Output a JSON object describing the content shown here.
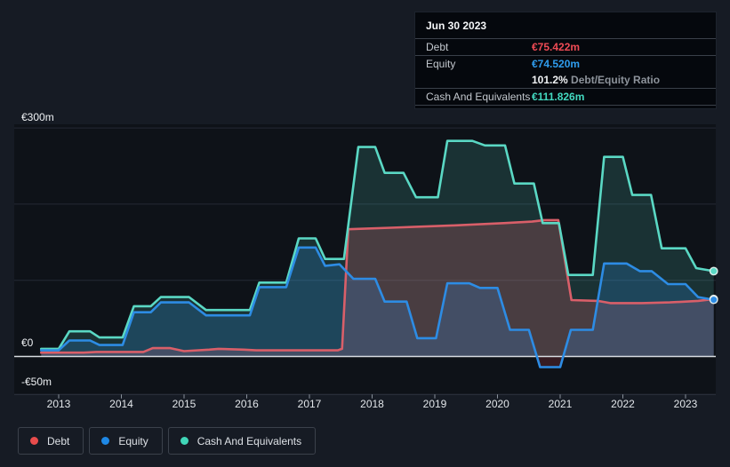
{
  "page": {
    "background": "#161b24",
    "plot_background": "#0e1218"
  },
  "tooltip": {
    "date": "Jun 30 2023",
    "debt_label": "Debt",
    "debt_value": "€75.422m",
    "debt_color": "#ef4b55",
    "equity_label": "Equity",
    "equity_value": "€74.520m",
    "equity_color": "#2f9ced",
    "ratio_value": "101.2%",
    "ratio_label": "Debt/Equity Ratio",
    "cash_label": "Cash And Equivalents",
    "cash_value": "€111.826m",
    "cash_color": "#43d9c0"
  },
  "axis": {
    "y_labels": [
      {
        "text": "€300m",
        "value": 300
      },
      {
        "text": "€0",
        "value": 0
      },
      {
        "text": "-€50m",
        "value": -50
      }
    ],
    "x_labels": [
      "2013",
      "2014",
      "2015",
      "2016",
      "2017",
      "2018",
      "2019",
      "2020",
      "2021",
      "2022",
      "2023"
    ]
  },
  "legend": [
    {
      "label": "Debt",
      "color": "#e84c4c"
    },
    {
      "label": "Equity",
      "color": "#1e88e5"
    },
    {
      "label": "Cash And Equivalents",
      "color": "#40d6b8"
    }
  ],
  "chart_data": {
    "type": "area",
    "unit": "€m",
    "x_range": [
      2012.72,
      2023.45
    ],
    "y_axis": {
      "min": -50,
      "max": 300,
      "gridlines": [
        300,
        200,
        100,
        0,
        -50
      ]
    },
    "grid_color": "#242a35",
    "zero_line_color": "#d9dde2",
    "series": [
      {
        "name": "Debt",
        "color": "#d95f69",
        "fill": "rgba(217,95,105,0.25)",
        "points": [
          [
            2012.72,
            5
          ],
          [
            2013.4,
            5
          ],
          [
            2013.6,
            6
          ],
          [
            2014.35,
            6
          ],
          [
            2014.5,
            11
          ],
          [
            2014.78,
            11
          ],
          [
            2015.0,
            7
          ],
          [
            2015.4,
            9
          ],
          [
            2015.55,
            10
          ],
          [
            2015.95,
            9
          ],
          [
            2016.15,
            8
          ],
          [
            2017.45,
            8
          ],
          [
            2017.52,
            10
          ],
          [
            2017.62,
            167
          ],
          [
            2018.3,
            169
          ],
          [
            2019.3,
            172
          ],
          [
            2020.1,
            175
          ],
          [
            2020.55,
            177
          ],
          [
            2020.75,
            179
          ],
          [
            2020.97,
            179
          ],
          [
            2021.18,
            74
          ],
          [
            2021.6,
            73
          ],
          [
            2021.8,
            70
          ],
          [
            2022.3,
            70
          ],
          [
            2022.75,
            71
          ],
          [
            2023.2,
            73
          ],
          [
            2023.45,
            75.4
          ]
        ]
      },
      {
        "name": "Equity",
        "color": "#2d8ce4",
        "fill": "rgba(45,140,232,0.22)",
        "negative_fill": "rgba(199,62,72,0.22)",
        "points": [
          [
            2012.72,
            8
          ],
          [
            2013.0,
            8
          ],
          [
            2013.17,
            21
          ],
          [
            2013.5,
            21
          ],
          [
            2013.65,
            15
          ],
          [
            2014.02,
            15
          ],
          [
            2014.2,
            58
          ],
          [
            2014.47,
            58
          ],
          [
            2014.63,
            71
          ],
          [
            2015.08,
            71
          ],
          [
            2015.35,
            54
          ],
          [
            2016.05,
            54
          ],
          [
            2016.2,
            91
          ],
          [
            2016.63,
            91
          ],
          [
            2016.83,
            143
          ],
          [
            2017.1,
            143
          ],
          [
            2017.25,
            119
          ],
          [
            2017.48,
            121
          ],
          [
            2017.7,
            102
          ],
          [
            2018.05,
            102
          ],
          [
            2018.2,
            72
          ],
          [
            2018.55,
            72
          ],
          [
            2018.72,
            24
          ],
          [
            2019.02,
            24
          ],
          [
            2019.2,
            96
          ],
          [
            2019.55,
            96
          ],
          [
            2019.72,
            90
          ],
          [
            2020.0,
            90
          ],
          [
            2020.2,
            35
          ],
          [
            2020.5,
            35
          ],
          [
            2020.68,
            -14
          ],
          [
            2021.0,
            -14
          ],
          [
            2021.17,
            35
          ],
          [
            2021.52,
            35
          ],
          [
            2021.7,
            122
          ],
          [
            2022.06,
            122
          ],
          [
            2022.27,
            112
          ],
          [
            2022.46,
            112
          ],
          [
            2022.72,
            95
          ],
          [
            2023.0,
            95
          ],
          [
            2023.2,
            78
          ],
          [
            2023.45,
            74.5
          ]
        ]
      },
      {
        "name": "Cash And Equivalents",
        "color": "#5ad8c4",
        "fill": "rgba(90,216,196,0.17)",
        "points": [
          [
            2012.72,
            10
          ],
          [
            2013.0,
            10
          ],
          [
            2013.17,
            33
          ],
          [
            2013.5,
            33
          ],
          [
            2013.65,
            25
          ],
          [
            2014.02,
            25
          ],
          [
            2014.2,
            66
          ],
          [
            2014.47,
            66
          ],
          [
            2014.63,
            78
          ],
          [
            2015.08,
            78
          ],
          [
            2015.35,
            61
          ],
          [
            2016.05,
            61
          ],
          [
            2016.2,
            97
          ],
          [
            2016.63,
            97
          ],
          [
            2016.83,
            155
          ],
          [
            2017.1,
            155
          ],
          [
            2017.25,
            128
          ],
          [
            2017.55,
            128
          ],
          [
            2017.78,
            275
          ],
          [
            2018.05,
            275
          ],
          [
            2018.2,
            241
          ],
          [
            2018.5,
            241
          ],
          [
            2018.7,
            209
          ],
          [
            2019.05,
            209
          ],
          [
            2019.2,
            283
          ],
          [
            2019.6,
            283
          ],
          [
            2019.8,
            277
          ],
          [
            2020.12,
            277
          ],
          [
            2020.27,
            227
          ],
          [
            2020.58,
            227
          ],
          [
            2020.72,
            175
          ],
          [
            2020.98,
            175
          ],
          [
            2021.13,
            107
          ],
          [
            2021.52,
            107
          ],
          [
            2021.7,
            262
          ],
          [
            2022.0,
            262
          ],
          [
            2022.15,
            212
          ],
          [
            2022.45,
            212
          ],
          [
            2022.62,
            142
          ],
          [
            2023.0,
            142
          ],
          [
            2023.17,
            116
          ],
          [
            2023.45,
            112
          ]
        ]
      }
    ]
  }
}
